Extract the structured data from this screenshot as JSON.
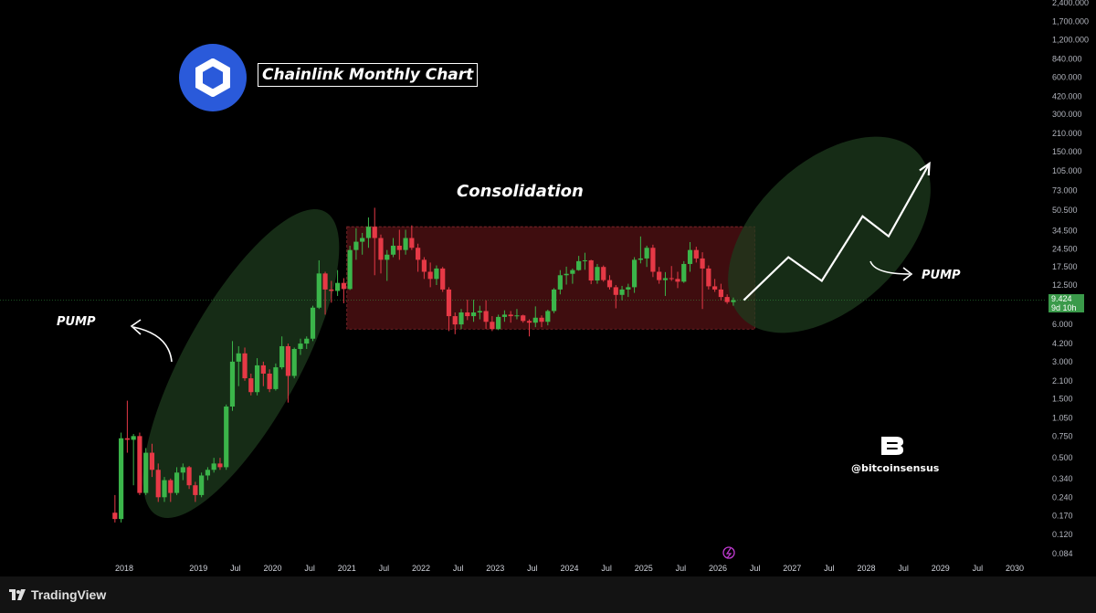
{
  "chart_data": {
    "type": "candlestick",
    "title": "Chainlink Monthly Chart",
    "scale": "log",
    "y_ticks": [
      "2,400.000",
      "1,700.000",
      "1,200.000",
      "840.000",
      "600.000",
      "420.000",
      "300.000",
      "210.000",
      "150.000",
      "105.000",
      "73.000",
      "50.500",
      "34.500",
      "24.500",
      "17.500",
      "12.500",
      "9.424",
      "6.000",
      "4.200",
      "3.000",
      "2.100",
      "1.500",
      "1.050",
      "0.750",
      "0.500",
      "0.340",
      "0.240",
      "0.170",
      "0.120",
      "0.084"
    ],
    "y_tick_values": [
      2400,
      1700,
      1200,
      840,
      600,
      420,
      300,
      210,
      150,
      105,
      73,
      50.5,
      34.5,
      24.5,
      17.5,
      12.5,
      9.424,
      6,
      4.2,
      3,
      2.1,
      1.5,
      1.05,
      0.75,
      0.5,
      0.34,
      0.24,
      0.17,
      0.12,
      0.084
    ],
    "x_ticks": [
      "2018",
      "2019",
      "Jul",
      "2020",
      "Jul",
      "2021",
      "Jul",
      "2022",
      "Jul",
      "2023",
      "Jul",
      "2024",
      "Jul",
      "2025",
      "Jul",
      "2026",
      "Jul",
      "2027",
      "Jul",
      "2028",
      "Jul",
      "2029",
      "Jul",
      "2030"
    ],
    "x_tick_dates": [
      2018.0,
      2019.0,
      2019.5,
      2020.0,
      2020.5,
      2021.0,
      2021.5,
      2022.0,
      2022.5,
      2023.0,
      2023.5,
      2024.0,
      2024.5,
      2025.0,
      2025.5,
      2026.0,
      2026.5,
      2027.0,
      2027.5,
      2028.0,
      2028.5,
      2029.0,
      2029.5,
      2030.0
    ],
    "current_price": "9.424",
    "countdown": "9d 10h",
    "candles": [
      {
        "date": "2017-11",
        "o": 0.18,
        "h": 0.25,
        "l": 0.15,
        "c": 0.16
      },
      {
        "date": "2017-12",
        "o": 0.16,
        "h": 0.8,
        "l": 0.15,
        "c": 0.72
      },
      {
        "date": "2018-01",
        "o": 0.72,
        "h": 1.45,
        "l": 0.55,
        "c": 0.7
      },
      {
        "date": "2018-02",
        "o": 0.7,
        "h": 0.78,
        "l": 0.3,
        "c": 0.75
      },
      {
        "date": "2018-03",
        "o": 0.75,
        "h": 0.8,
        "l": 0.25,
        "c": 0.26
      },
      {
        "date": "2018-04",
        "o": 0.26,
        "h": 0.6,
        "l": 0.25,
        "c": 0.55
      },
      {
        "date": "2018-05",
        "o": 0.55,
        "h": 0.65,
        "l": 0.35,
        "c": 0.4
      },
      {
        "date": "2018-06",
        "o": 0.4,
        "h": 0.45,
        "l": 0.22,
        "c": 0.24
      },
      {
        "date": "2018-07",
        "o": 0.24,
        "h": 0.35,
        "l": 0.22,
        "c": 0.33
      },
      {
        "date": "2018-08",
        "o": 0.33,
        "h": 0.34,
        "l": 0.22,
        "c": 0.26
      },
      {
        "date": "2018-09",
        "o": 0.26,
        "h": 0.42,
        "l": 0.25,
        "c": 0.38
      },
      {
        "date": "2018-10",
        "o": 0.38,
        "h": 0.45,
        "l": 0.33,
        "c": 0.42
      },
      {
        "date": "2018-11",
        "o": 0.42,
        "h": 0.43,
        "l": 0.28,
        "c": 0.3
      },
      {
        "date": "2018-12",
        "o": 0.3,
        "h": 0.32,
        "l": 0.22,
        "c": 0.25
      },
      {
        "date": "2019-01",
        "o": 0.25,
        "h": 0.38,
        "l": 0.24,
        "c": 0.36
      },
      {
        "date": "2019-02",
        "o": 0.36,
        "h": 0.42,
        "l": 0.33,
        "c": 0.4
      },
      {
        "date": "2019-03",
        "o": 0.4,
        "h": 0.5,
        "l": 0.38,
        "c": 0.45
      },
      {
        "date": "2019-04",
        "o": 0.45,
        "h": 0.5,
        "l": 0.4,
        "c": 0.42
      },
      {
        "date": "2019-05",
        "o": 0.42,
        "h": 1.35,
        "l": 0.4,
        "c": 1.3
      },
      {
        "date": "2019-06",
        "o": 1.3,
        "h": 4.4,
        "l": 1.2,
        "c": 3.0
      },
      {
        "date": "2019-07",
        "o": 3.0,
        "h": 4.0,
        "l": 1.9,
        "c": 3.5
      },
      {
        "date": "2019-08",
        "o": 3.5,
        "h": 3.9,
        "l": 2.1,
        "c": 2.2
      },
      {
        "date": "2019-09",
        "o": 2.2,
        "h": 2.4,
        "l": 1.6,
        "c": 1.7
      },
      {
        "date": "2019-10",
        "o": 1.7,
        "h": 3.2,
        "l": 1.6,
        "c": 2.8
      },
      {
        "date": "2019-11",
        "o": 2.8,
        "h": 3.0,
        "l": 1.9,
        "c": 2.4
      },
      {
        "date": "2019-12",
        "o": 2.4,
        "h": 2.6,
        "l": 1.7,
        "c": 1.8
      },
      {
        "date": "2020-01",
        "o": 1.8,
        "h": 2.9,
        "l": 1.75,
        "c": 2.7
      },
      {
        "date": "2020-02",
        "o": 2.7,
        "h": 4.8,
        "l": 2.6,
        "c": 4.0
      },
      {
        "date": "2020-03",
        "o": 4.0,
        "h": 4.2,
        "l": 1.4,
        "c": 2.3
      },
      {
        "date": "2020-04",
        "o": 2.3,
        "h": 3.9,
        "l": 2.2,
        "c": 3.8
      },
      {
        "date": "2020-05",
        "o": 3.8,
        "h": 4.6,
        "l": 3.4,
        "c": 4.2
      },
      {
        "date": "2020-06",
        "o": 4.2,
        "h": 4.8,
        "l": 3.8,
        "c": 4.6
      },
      {
        "date": "2020-07",
        "o": 4.6,
        "h": 8.5,
        "l": 4.4,
        "c": 8.2
      },
      {
        "date": "2020-08",
        "o": 8.2,
        "h": 19.8,
        "l": 8.0,
        "c": 15.5
      },
      {
        "date": "2020-09",
        "o": 15.5,
        "h": 16.0,
        "l": 7.2,
        "c": 11.5
      },
      {
        "date": "2020-10",
        "o": 11.5,
        "h": 13.5,
        "l": 9.0,
        "c": 11.2
      },
      {
        "date": "2020-11",
        "o": 11.2,
        "h": 16.5,
        "l": 10.2,
        "c": 13.0
      },
      {
        "date": "2020-12",
        "o": 13.0,
        "h": 14.2,
        "l": 8.9,
        "c": 11.6
      },
      {
        "date": "2021-01",
        "o": 11.6,
        "h": 26.0,
        "l": 11.4,
        "c": 24.0
      },
      {
        "date": "2021-02",
        "o": 24.0,
        "h": 36.0,
        "l": 20.0,
        "c": 28.0
      },
      {
        "date": "2021-03",
        "o": 28.0,
        "h": 33.0,
        "l": 22.0,
        "c": 30.0
      },
      {
        "date": "2021-04",
        "o": 30.0,
        "h": 44.0,
        "l": 25.0,
        "c": 37.0
      },
      {
        "date": "2021-05",
        "o": 37.0,
        "h": 52.7,
        "l": 15.0,
        "c": 30.0
      },
      {
        "date": "2021-06",
        "o": 30.0,
        "h": 32.0,
        "l": 15.5,
        "c": 20.0
      },
      {
        "date": "2021-07",
        "o": 20.0,
        "h": 24.0,
        "l": 13.5,
        "c": 22.0
      },
      {
        "date": "2021-08",
        "o": 22.0,
        "h": 30.0,
        "l": 21.0,
        "c": 26.0
      },
      {
        "date": "2021-09",
        "o": 26.0,
        "h": 35.0,
        "l": 20.0,
        "c": 24.0
      },
      {
        "date": "2021-10",
        "o": 24.0,
        "h": 35.0,
        "l": 22.0,
        "c": 30.0
      },
      {
        "date": "2021-11",
        "o": 30.0,
        "h": 38.0,
        "l": 24.0,
        "c": 25.0
      },
      {
        "date": "2021-12",
        "o": 25.0,
        "h": 27.0,
        "l": 16.0,
        "c": 20.0
      },
      {
        "date": "2022-01",
        "o": 20.0,
        "h": 21.0,
        "l": 14.0,
        "c": 16.0
      },
      {
        "date": "2022-02",
        "o": 16.0,
        "h": 19.0,
        "l": 12.0,
        "c": 14.0
      },
      {
        "date": "2022-03",
        "o": 14.0,
        "h": 18.0,
        "l": 12.5,
        "c": 17.0
      },
      {
        "date": "2022-04",
        "o": 17.0,
        "h": 17.5,
        "l": 11.0,
        "c": 11.5
      },
      {
        "date": "2022-05",
        "o": 11.5,
        "h": 12.0,
        "l": 5.3,
        "c": 7.0
      },
      {
        "date": "2022-06",
        "o": 7.0,
        "h": 7.5,
        "l": 5.0,
        "c": 6.0
      },
      {
        "date": "2022-07",
        "o": 6.0,
        "h": 8.0,
        "l": 5.5,
        "c": 7.5
      },
      {
        "date": "2022-08",
        "o": 7.5,
        "h": 9.5,
        "l": 6.5,
        "c": 7.0
      },
      {
        "date": "2022-09",
        "o": 7.0,
        "h": 9.5,
        "l": 6.3,
        "c": 7.5
      },
      {
        "date": "2022-10",
        "o": 7.5,
        "h": 8.5,
        "l": 6.6,
        "c": 7.7
      },
      {
        "date": "2022-11",
        "o": 7.7,
        "h": 9.4,
        "l": 5.5,
        "c": 6.3
      },
      {
        "date": "2022-12",
        "o": 6.3,
        "h": 7.0,
        "l": 5.3,
        "c": 5.5
      },
      {
        "date": "2023-01",
        "o": 5.5,
        "h": 7.2,
        "l": 5.4,
        "c": 6.9
      },
      {
        "date": "2023-02",
        "o": 6.9,
        "h": 7.8,
        "l": 6.3,
        "c": 7.2
      },
      {
        "date": "2023-03",
        "o": 7.2,
        "h": 7.7,
        "l": 6.2,
        "c": 7.0
      },
      {
        "date": "2023-04",
        "o": 7.0,
        "h": 8.0,
        "l": 6.6,
        "c": 7.1
      },
      {
        "date": "2023-05",
        "o": 7.1,
        "h": 7.2,
        "l": 6.2,
        "c": 6.4
      },
      {
        "date": "2023-06",
        "o": 6.4,
        "h": 6.6,
        "l": 4.8,
        "c": 6.2
      },
      {
        "date": "2023-07",
        "o": 6.2,
        "h": 8.4,
        "l": 5.7,
        "c": 6.8
      },
      {
        "date": "2023-08",
        "o": 6.8,
        "h": 7.1,
        "l": 5.7,
        "c": 6.3
      },
      {
        "date": "2023-09",
        "o": 6.3,
        "h": 7.9,
        "l": 5.9,
        "c": 7.7
      },
      {
        "date": "2023-10",
        "o": 7.7,
        "h": 11.8,
        "l": 7.4,
        "c": 11.5
      },
      {
        "date": "2023-11",
        "o": 11.5,
        "h": 16.5,
        "l": 10.5,
        "c": 15.0
      },
      {
        "date": "2023-12",
        "o": 15.0,
        "h": 17.6,
        "l": 12.6,
        "c": 15.4
      },
      {
        "date": "2024-01",
        "o": 15.4,
        "h": 17.0,
        "l": 12.8,
        "c": 16.5
      },
      {
        "date": "2024-02",
        "o": 16.5,
        "h": 21.5,
        "l": 16.3,
        "c": 19.5
      },
      {
        "date": "2024-03",
        "o": 19.5,
        "h": 22.8,
        "l": 16.6,
        "c": 19.8
      },
      {
        "date": "2024-04",
        "o": 19.8,
        "h": 20.0,
        "l": 12.7,
        "c": 13.6
      },
      {
        "date": "2024-05",
        "o": 13.6,
        "h": 18.5,
        "l": 12.8,
        "c": 17.5
      },
      {
        "date": "2024-06",
        "o": 17.5,
        "h": 18.0,
        "l": 13.3,
        "c": 13.7
      },
      {
        "date": "2024-07",
        "o": 13.7,
        "h": 15.0,
        "l": 11.5,
        "c": 12.0
      },
      {
        "date": "2024-08",
        "o": 12.0,
        "h": 12.5,
        "l": 8.1,
        "c": 10.4
      },
      {
        "date": "2024-09",
        "o": 10.4,
        "h": 12.3,
        "l": 9.4,
        "c": 11.5
      },
      {
        "date": "2024-10",
        "o": 11.5,
        "h": 12.8,
        "l": 10.0,
        "c": 12.0
      },
      {
        "date": "2024-11",
        "o": 12.0,
        "h": 21.0,
        "l": 10.8,
        "c": 20.0
      },
      {
        "date": "2024-12",
        "o": 20.0,
        "h": 30.9,
        "l": 18.7,
        "c": 20.5
      },
      {
        "date": "2025-01",
        "o": 20.5,
        "h": 26.0,
        "l": 17.5,
        "c": 25.0
      },
      {
        "date": "2025-02",
        "o": 25.0,
        "h": 26.5,
        "l": 14.5,
        "c": 16.0
      },
      {
        "date": "2025-03",
        "o": 16.0,
        "h": 17.5,
        "l": 12.8,
        "c": 13.7
      },
      {
        "date": "2025-04",
        "o": 13.7,
        "h": 15.9,
        "l": 10.2,
        "c": 14.2
      },
      {
        "date": "2025-05",
        "o": 14.2,
        "h": 17.8,
        "l": 13.5,
        "c": 14.0
      },
      {
        "date": "2025-06",
        "o": 14.0,
        "h": 16.0,
        "l": 11.8,
        "c": 13.3
      },
      {
        "date": "2025-07",
        "o": 13.3,
        "h": 19.5,
        "l": 13.0,
        "c": 18.5
      },
      {
        "date": "2025-08",
        "o": 18.5,
        "h": 27.8,
        "l": 16.0,
        "c": 24.0
      },
      {
        "date": "2025-09",
        "o": 24.0,
        "h": 25.5,
        "l": 19.0,
        "c": 20.5
      },
      {
        "date": "2025-10",
        "o": 20.5,
        "h": 23.0,
        "l": 8.0,
        "c": 17.0
      },
      {
        "date": "2025-11",
        "o": 17.0,
        "h": 18.0,
        "l": 11.5,
        "c": 12.2
      },
      {
        "date": "2025-12",
        "o": 12.2,
        "h": 14.0,
        "l": 11.0,
        "c": 11.5
      },
      {
        "date": "2026-01",
        "o": 11.5,
        "h": 12.8,
        "l": 9.4,
        "c": 10.0
      },
      {
        "date": "2026-02",
        "o": 10.0,
        "h": 10.5,
        "l": 8.8,
        "c": 9.1
      },
      {
        "date": "2026-03",
        "o": 9.1,
        "h": 9.9,
        "l": 8.5,
        "c": 9.424
      }
    ],
    "consolidation_range": {
      "x_start": "2021-01",
      "x_end": "2026-07",
      "low": 5.5,
      "high": 37.0
    },
    "projection_path": [
      {
        "x": 2026.35,
        "y": 9.424
      },
      {
        "x": 2026.95,
        "y": 21.0
      },
      {
        "x": 2027.4,
        "y": 13.5
      },
      {
        "x": 2027.95,
        "y": 45.0
      },
      {
        "x": 2028.3,
        "y": 31.0
      },
      {
        "x": 2028.85,
        "y": 120.0
      }
    ]
  },
  "annotations": {
    "consolidation": "Consolidation",
    "pump_left": "PUMP",
    "pump_right": "PUMP"
  },
  "branding": {
    "handle": "@bitcoinsensus",
    "platform": "TradingView"
  },
  "icons": {
    "logo": "chainlink-logo-icon",
    "lightning": "lightning-icon",
    "brand": "bitcoinsensus-b-icon",
    "tv": "tradingview-logo-icon"
  },
  "colors": {
    "up": "#3bb54a",
    "down": "#e63946",
    "highlight_green": "#1e3b1e",
    "highlight_red": "#4a0f12",
    "chainlink_blue": "#2a5ada"
  }
}
